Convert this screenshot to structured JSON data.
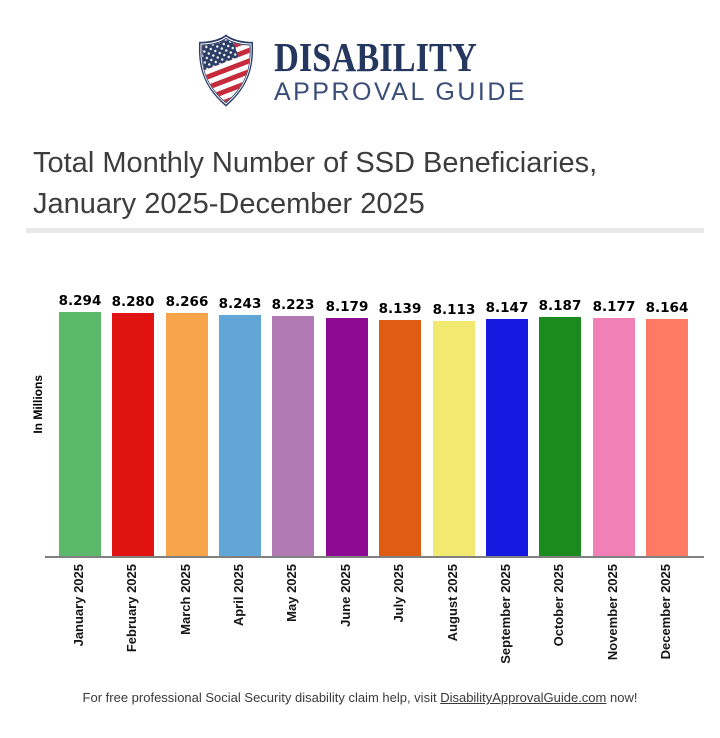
{
  "logo": {
    "brand_line1": "DISABILITY",
    "brand_line2": "APPROVAL GUIDE",
    "shield_icon": "us-flag-shield",
    "brand_color": "#25375f",
    "flag_red": "#c62b3c",
    "flag_blue": "#2c3d66"
  },
  "title_line1": "Total Monthly Number of SSD Beneficiaries,",
  "title_line2": "January 2025-December 2025",
  "chart_data": {
    "type": "bar",
    "title": "Total Monthly Number of SSD Beneficiaries, January 2025-December 2025",
    "xlabel": "",
    "ylabel": "In Millions",
    "categories": [
      "January 2025",
      "February 2025",
      "March 2025",
      "April 2025",
      "May 2025",
      "June 2025",
      "July 2025",
      "August 2025",
      "September 2025",
      "October 2025",
      "November 2025",
      "December 2025"
    ],
    "values": [
      8.294,
      8.28,
      8.266,
      8.243,
      8.223,
      8.179,
      8.139,
      8.113,
      8.147,
      8.187,
      8.177,
      8.164
    ],
    "value_labels": [
      "8.294",
      "8.280",
      "8.266",
      "8.243",
      "8.223",
      "8.179",
      "8.139",
      "8.113",
      "8.147",
      "8.187",
      "8.177",
      "8.164"
    ],
    "colors": [
      "#5cb969",
      "#e11212",
      "#f8a44b",
      "#62a6d8",
      "#b27ab4",
      "#8e0a92",
      "#df5d12",
      "#f2e971",
      "#161ae0",
      "#1b8a1f",
      "#f080b6",
      "#fe7a62"
    ],
    "ylim": [
      3.4,
      8.4
    ],
    "grid": false,
    "legend": false,
    "value_labels_shown": true,
    "axis_color": "#808080"
  },
  "footer": {
    "prefix": "For free professional Social Security disability claim help, visit ",
    "link": "DisabilityApprovalGuide.com",
    "suffix": " now!"
  }
}
